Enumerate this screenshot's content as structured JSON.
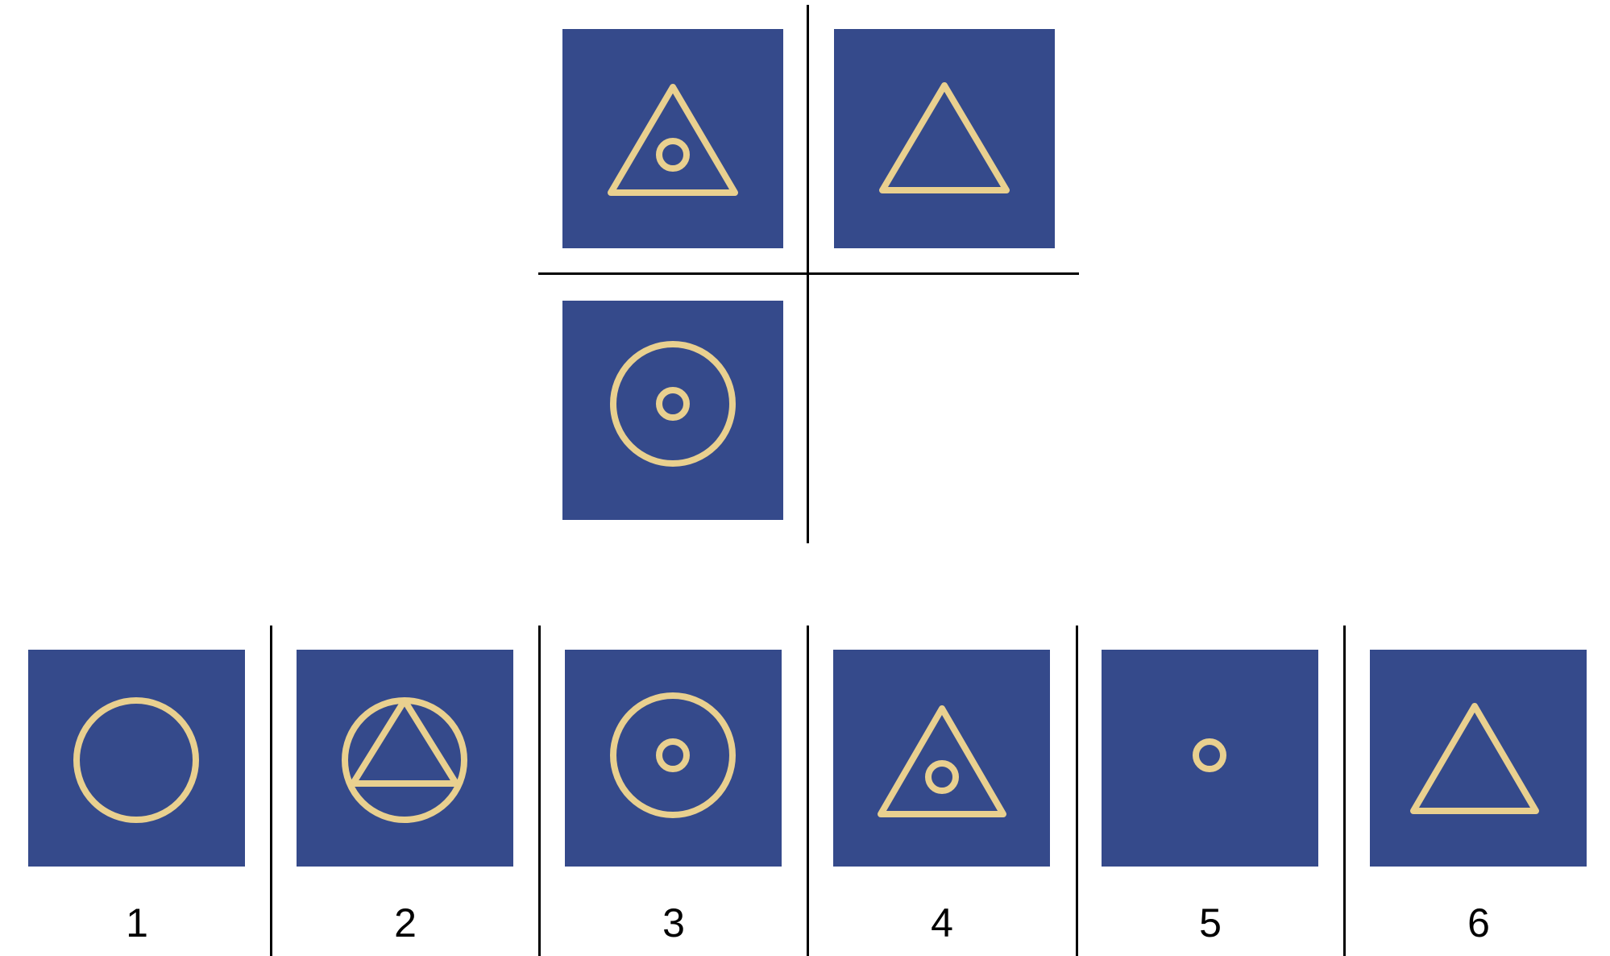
{
  "colors": {
    "tile": "#354a8b",
    "glyph": "#e9d08f",
    "lines": "#000000"
  },
  "puzzle": {
    "cells": [
      {
        "position": "top-left",
        "figure": "triangle-with-small-circle"
      },
      {
        "position": "top-right",
        "figure": "triangle"
      },
      {
        "position": "bottom-left",
        "figure": "circle-with-small-circle"
      },
      {
        "position": "bottom-right",
        "figure": "empty"
      }
    ]
  },
  "options": [
    {
      "label": "1",
      "figure": "circle"
    },
    {
      "label": "2",
      "figure": "circle-with-inscribed-triangle"
    },
    {
      "label": "3",
      "figure": "circle-with-small-circle"
    },
    {
      "label": "4",
      "figure": "triangle-with-small-circle"
    },
    {
      "label": "5",
      "figure": "small-circle"
    },
    {
      "label": "6",
      "figure": "triangle"
    }
  ]
}
